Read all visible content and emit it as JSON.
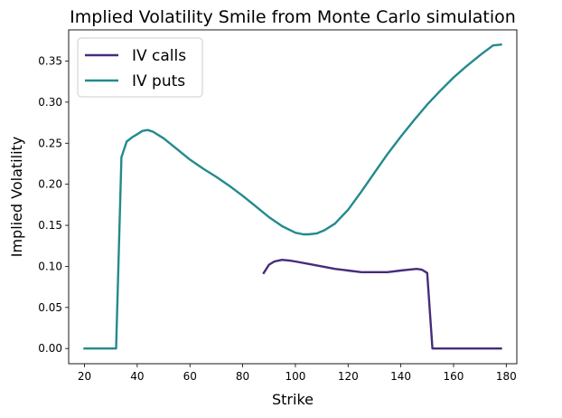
{
  "chart_data": {
    "type": "line",
    "title": "Implied Volatility Smile from Monte Carlo simulation",
    "xlabel": "Strike",
    "ylabel": "Implied Volatility",
    "xlim": [
      14,
      184
    ],
    "ylim": [
      -0.0185,
      0.388
    ],
    "xticks": [
      20,
      40,
      60,
      80,
      100,
      120,
      140,
      160,
      180
    ],
    "yticks": [
      0.0,
      0.05,
      0.1,
      0.15,
      0.2,
      0.25,
      0.3,
      0.35
    ],
    "grid": false,
    "legend": "upper-left",
    "series": [
      {
        "name": "IV calls",
        "color": "#472c7a",
        "x": [
          88,
          90,
          92,
          95,
          98,
          100,
          105,
          110,
          115,
          120,
          125,
          130,
          135,
          140,
          143,
          146,
          148,
          150,
          152,
          155,
          160,
          170,
          178
        ],
        "y": [
          0.092,
          0.102,
          0.106,
          0.108,
          0.107,
          0.106,
          0.103,
          0.1,
          0.097,
          0.095,
          0.093,
          0.093,
          0.093,
          0.095,
          0.096,
          0.097,
          0.096,
          0.092,
          0.0,
          0.0,
          0.0,
          0.0,
          0.0
        ]
      },
      {
        "name": "IV puts",
        "color": "#238a8d",
        "x": [
          20,
          25,
          30,
          32,
          34,
          36,
          38,
          40,
          42,
          44,
          46,
          50,
          55,
          60,
          65,
          70,
          75,
          80,
          85,
          90,
          95,
          100,
          103,
          105,
          108,
          111,
          115,
          120,
          125,
          130,
          135,
          140,
          145,
          150,
          155,
          160,
          165,
          170,
          175,
          178
        ],
        "y": [
          0.0,
          0.0,
          0.0,
          0.0,
          0.233,
          0.252,
          0.257,
          0.261,
          0.265,
          0.266,
          0.264,
          0.256,
          0.243,
          0.23,
          0.219,
          0.209,
          0.198,
          0.186,
          0.173,
          0.16,
          0.149,
          0.141,
          0.139,
          0.139,
          0.14,
          0.144,
          0.152,
          0.169,
          0.191,
          0.214,
          0.237,
          0.258,
          0.278,
          0.297,
          0.314,
          0.33,
          0.344,
          0.357,
          0.369,
          0.37
        ]
      }
    ]
  }
}
